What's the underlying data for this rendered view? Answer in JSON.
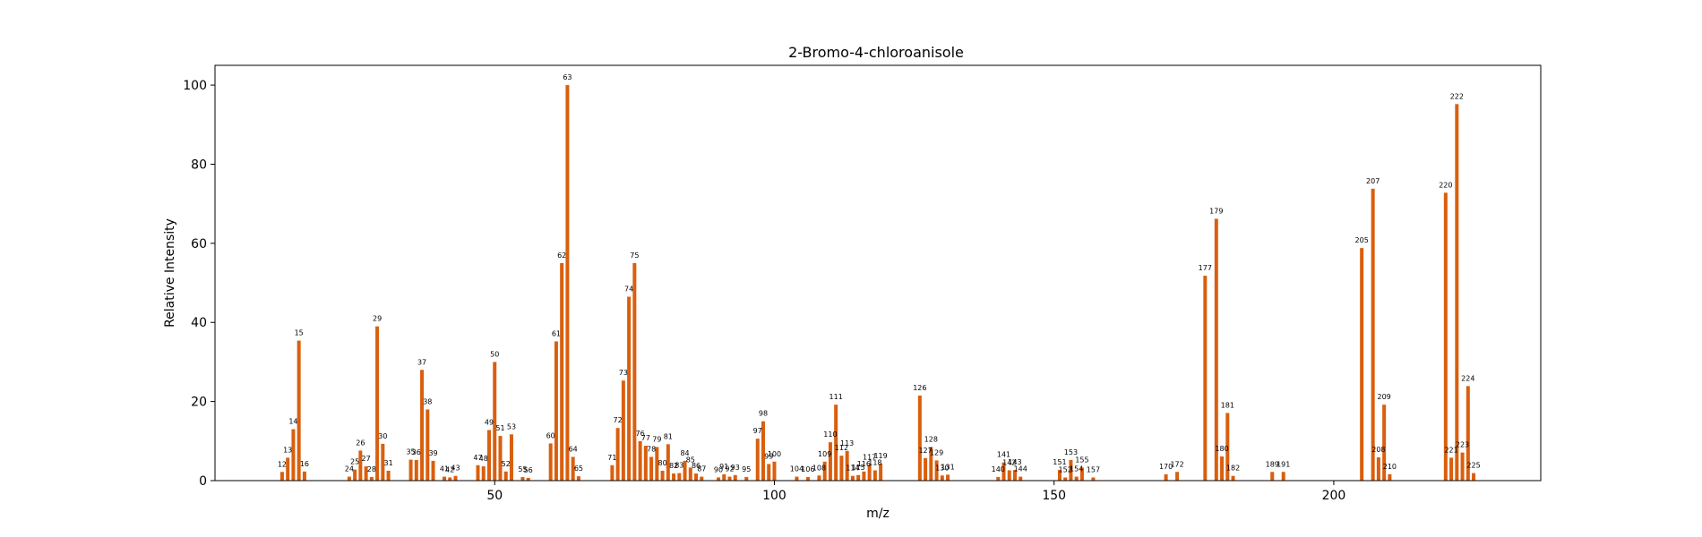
{
  "chart_data": {
    "type": "bar",
    "title": "2-Bromo-4-chloroanisole",
    "xlabel": "m/z",
    "ylabel": "Relative Intensity",
    "xlim": [
      0,
      237
    ],
    "ylim": [
      0,
      105
    ],
    "xticks": [
      50,
      100,
      150,
      200
    ],
    "yticks": [
      0,
      20,
      40,
      60,
      80,
      100
    ],
    "grid": false,
    "bar_color": "#d95f0e",
    "peaks": [
      {
        "x": 12,
        "y": 2.2
      },
      {
        "x": 13,
        "y": 5.8
      },
      {
        "x": 14,
        "y": 13.0
      },
      {
        "x": 15,
        "y": 35.4
      },
      {
        "x": 16,
        "y": 2.3
      },
      {
        "x": 24,
        "y": 1.0
      },
      {
        "x": 25,
        "y": 2.8
      },
      {
        "x": 26,
        "y": 7.6
      },
      {
        "x": 27,
        "y": 3.6
      },
      {
        "x": 28,
        "y": 0.9
      },
      {
        "x": 29,
        "y": 39.0
      },
      {
        "x": 30,
        "y": 9.3
      },
      {
        "x": 31,
        "y": 2.5
      },
      {
        "x": 35,
        "y": 5.3
      },
      {
        "x": 36,
        "y": 5.2
      },
      {
        "x": 37,
        "y": 28.0
      },
      {
        "x": 38,
        "y": 18.0
      },
      {
        "x": 39,
        "y": 5.0
      },
      {
        "x": 41,
        "y": 1.0
      },
      {
        "x": 42,
        "y": 0.8
      },
      {
        "x": 43,
        "y": 1.2
      },
      {
        "x": 47,
        "y": 3.9
      },
      {
        "x": 48,
        "y": 3.6
      },
      {
        "x": 49,
        "y": 12.8
      },
      {
        "x": 50,
        "y": 30.0
      },
      {
        "x": 51,
        "y": 11.3
      },
      {
        "x": 52,
        "y": 2.3
      },
      {
        "x": 53,
        "y": 11.7
      },
      {
        "x": 55,
        "y": 0.9
      },
      {
        "x": 56,
        "y": 0.7
      },
      {
        "x": 60,
        "y": 9.4
      },
      {
        "x": 61,
        "y": 35.2
      },
      {
        "x": 62,
        "y": 55.0
      },
      {
        "x": 63,
        "y": 100
      },
      {
        "x": 64,
        "y": 6.0
      },
      {
        "x": 65,
        "y": 1.1
      },
      {
        "x": 71,
        "y": 3.9
      },
      {
        "x": 72,
        "y": 13.3
      },
      {
        "x": 73,
        "y": 25.3
      },
      {
        "x": 74,
        "y": 46.5
      },
      {
        "x": 75,
        "y": 55.0
      },
      {
        "x": 76,
        "y": 10.0
      },
      {
        "x": 77,
        "y": 8.8
      },
      {
        "x": 78,
        "y": 6.0
      },
      {
        "x": 79,
        "y": 8.5
      },
      {
        "x": 80,
        "y": 2.5
      },
      {
        "x": 81,
        "y": 9.2
      },
      {
        "x": 82,
        "y": 1.8
      },
      {
        "x": 83,
        "y": 1.9
      },
      {
        "x": 84,
        "y": 5.0
      },
      {
        "x": 85,
        "y": 3.3
      },
      {
        "x": 86,
        "y": 1.8
      },
      {
        "x": 87,
        "y": 1.0
      },
      {
        "x": 90,
        "y": 0.8
      },
      {
        "x": 91,
        "y": 1.6
      },
      {
        "x": 92,
        "y": 1.0
      },
      {
        "x": 93,
        "y": 1.4
      },
      {
        "x": 95,
        "y": 0.9
      },
      {
        "x": 97,
        "y": 10.6
      },
      {
        "x": 98,
        "y": 15.0
      },
      {
        "x": 99,
        "y": 4.2
      },
      {
        "x": 100,
        "y": 4.8
      },
      {
        "x": 104,
        "y": 1.0
      },
      {
        "x": 106,
        "y": 0.9
      },
      {
        "x": 108,
        "y": 1.3
      },
      {
        "x": 109,
        "y": 4.8
      },
      {
        "x": 110,
        "y": 9.7
      },
      {
        "x": 111,
        "y": 19.2
      },
      {
        "x": 112,
        "y": 6.3
      },
      {
        "x": 113,
        "y": 7.5
      },
      {
        "x": 114,
        "y": 1.2
      },
      {
        "x": 115,
        "y": 1.4
      },
      {
        "x": 116,
        "y": 2.3
      },
      {
        "x": 117,
        "y": 4.0
      },
      {
        "x": 118,
        "y": 2.6
      },
      {
        "x": 119,
        "y": 4.3
      },
      {
        "x": 126,
        "y": 21.5
      },
      {
        "x": 127,
        "y": 5.7
      },
      {
        "x": 128,
        "y": 8.5
      },
      {
        "x": 129,
        "y": 5.1
      },
      {
        "x": 130,
        "y": 1.3
      },
      {
        "x": 131,
        "y": 1.5
      },
      {
        "x": 140,
        "y": 0.9
      },
      {
        "x": 141,
        "y": 4.6
      },
      {
        "x": 142,
        "y": 2.6
      },
      {
        "x": 143,
        "y": 2.7
      },
      {
        "x": 144,
        "y": 1.0
      },
      {
        "x": 151,
        "y": 2.7
      },
      {
        "x": 152,
        "y": 0.8
      },
      {
        "x": 153,
        "y": 5.2
      },
      {
        "x": 154,
        "y": 1.0
      },
      {
        "x": 155,
        "y": 3.3
      },
      {
        "x": 157,
        "y": 0.8
      },
      {
        "x": 170,
        "y": 1.6
      },
      {
        "x": 172,
        "y": 2.2
      },
      {
        "x": 177,
        "y": 51.8
      },
      {
        "x": 179,
        "y": 66.2
      },
      {
        "x": 180,
        "y": 6.1
      },
      {
        "x": 181,
        "y": 17.1
      },
      {
        "x": 182,
        "y": 1.2
      },
      {
        "x": 189,
        "y": 2.2
      },
      {
        "x": 191,
        "y": 2.2
      },
      {
        "x": 205,
        "y": 58.8
      },
      {
        "x": 207,
        "y": 73.8
      },
      {
        "x": 208,
        "y": 5.9
      },
      {
        "x": 209,
        "y": 19.2
      },
      {
        "x": 210,
        "y": 1.6
      },
      {
        "x": 220,
        "y": 72.8
      },
      {
        "x": 221,
        "y": 5.8
      },
      {
        "x": 222,
        "y": 95.2
      },
      {
        "x": 223,
        "y": 7.1
      },
      {
        "x": 224,
        "y": 23.9
      },
      {
        "x": 225,
        "y": 1.9
      }
    ]
  }
}
